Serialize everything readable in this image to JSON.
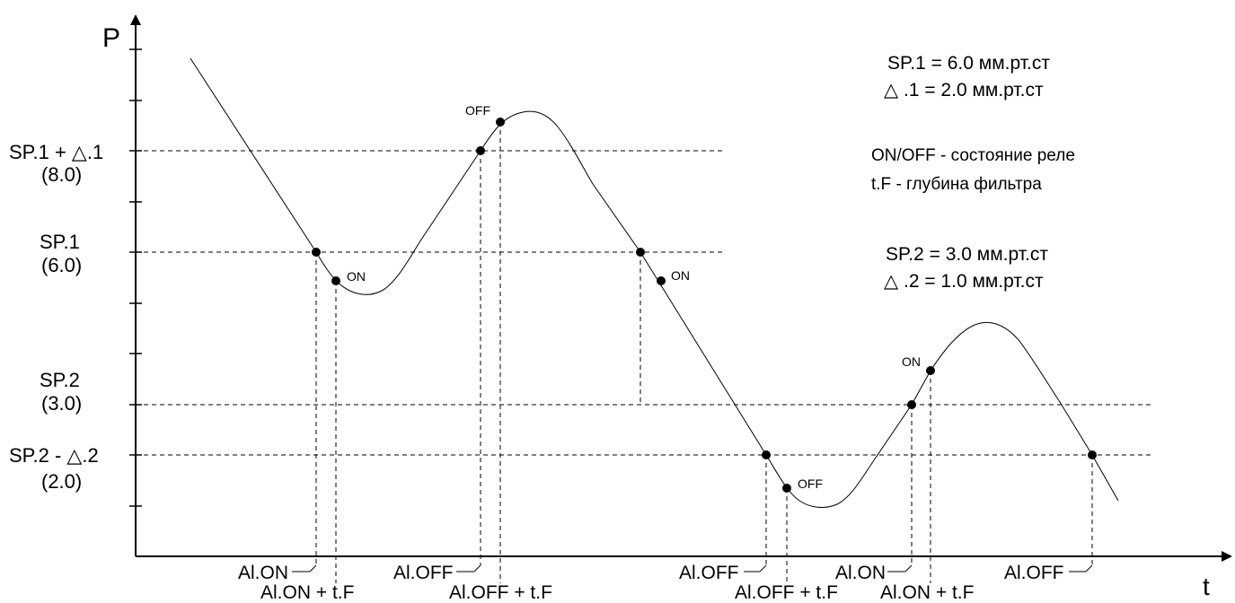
{
  "axes": {
    "y_label": "P",
    "x_label": "t"
  },
  "y_levels": [
    {
      "label": "SP.1 + △.1",
      "value": "(8.0)"
    },
    {
      "label": "SP.1",
      "value": "(6.0)"
    },
    {
      "label": "SP.2",
      "value": "(3.0)"
    },
    {
      "label": "SP.2 - △.2",
      "value": "(2.0)"
    }
  ],
  "settings": {
    "sp1": "SP.1 = 6.0  мм.рт.ст",
    "d1": "△ .1 = 2.0  мм.рт.ст",
    "legend_onoff": "ON/OFF - состояние реле",
    "legend_tf": "t.F - глубина фильтра",
    "sp2": "SP.2 = 3.0  мм.рт.ст",
    "d2": "△ .2 = 1.0  мм.рт.ст"
  },
  "point_labels": {
    "on1": "ON",
    "off1": "OFF",
    "on2": "ON",
    "off2": "OFF",
    "on3": "ON"
  },
  "x_markers": {
    "al_on_1": "Al.ON",
    "al_on_tf_1": "Al.ON + t.F",
    "al_off_1": "Al.OFF",
    "al_off_tf_1": "Al.OFF + t.F",
    "al_off_2": "Al.OFF",
    "al_off_tf_2": "Al.OFF + t.F",
    "al_on_2": "Al.ON",
    "al_on_tf_2": "Al.ON + t.F",
    "al_off_3": "Al.OFF"
  }
}
